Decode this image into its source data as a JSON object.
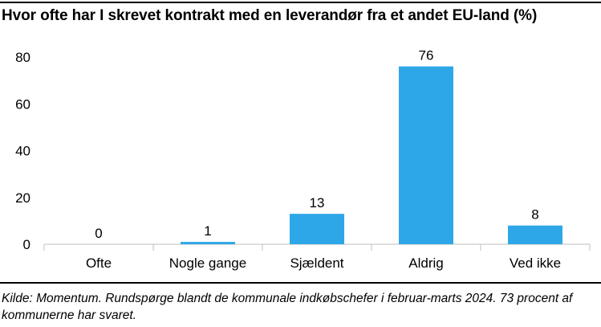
{
  "chart_data": {
    "type": "bar",
    "title": "Hvor ofte har I skrevet kontrakt med en leverandør fra et andet EU-land (%)",
    "categories": [
      "Ofte",
      "Nogle gange",
      "Sjældent",
      "Aldrig",
      "Ved ikke"
    ],
    "values": [
      0,
      1,
      13,
      76,
      8
    ],
    "data_labels": [
      "0",
      "1",
      "13",
      "76",
      "8"
    ],
    "yticks": [
      "0",
      "20",
      "40",
      "60",
      "80"
    ],
    "ytick_values": [
      0,
      20,
      40,
      60,
      80
    ],
    "ylim": [
      0,
      80
    ],
    "grid": false,
    "legend": "none",
    "bar_color": "#2EA7E8",
    "axis_color": "#bfbfbf"
  },
  "source_text": "Kilde: Momentum. Rundspørge blandt de kommunale indkøbschefer i februar-marts 2024. 73 procent af kommunerne har svaret."
}
